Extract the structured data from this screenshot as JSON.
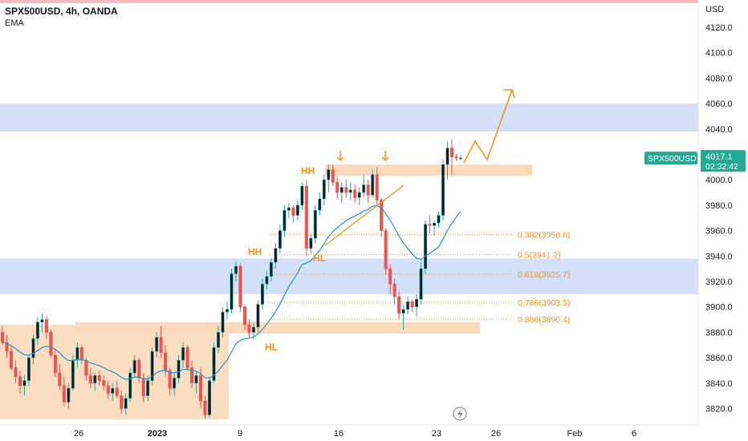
{
  "header": {
    "symbol_line": "SPX500USD, 4h, OANDA",
    "indicator": "EMA"
  },
  "price_axis": {
    "currency": "USD",
    "ticks": [
      "4120.0",
      "4100.0",
      "4080.0",
      "4060.0",
      "4040.0",
      "4020.0",
      "4000.0",
      "3980.0",
      "3960.0",
      "3940.0",
      "3920.0",
      "3900.0",
      "3880.0",
      "3860.0",
      "3840.0",
      "3820.0"
    ]
  },
  "time_axis": {
    "ticks": [
      {
        "label": "26",
        "bold": false
      },
      {
        "label": "2023",
        "bold": true
      },
      {
        "label": "9",
        "bold": false
      },
      {
        "label": "16",
        "bold": false
      },
      {
        "label": "23",
        "bold": false
      },
      {
        "label": "26",
        "bold": false
      },
      {
        "label": "Feb",
        "bold": false
      },
      {
        "label": "6",
        "bold": false
      }
    ]
  },
  "price_badge": {
    "symbol": "SPX500USD",
    "price": "4017.1",
    "countdown": "02:32:42"
  },
  "fib_levels": [
    {
      "label": "0.382(3956.8)",
      "value": 3956.8
    },
    {
      "label": "0.5(3941.2)",
      "value": 3941.2
    },
    {
      "label": "0.618(3925.7)",
      "value": 3925.7
    },
    {
      "label": "0.786(3903.5)",
      "value": 3903.5
    },
    {
      "label": "0.886(3890.4)",
      "value": 3890.4
    }
  ],
  "annotations": [
    "HH",
    "HH",
    "HL",
    "HL"
  ],
  "colors": {
    "up": "#26a69a",
    "down": "#ef5350",
    "body_dark": "#131722",
    "ema": "#2196c9",
    "orange": "#f7931a",
    "blue_zone": "#d4e0f8",
    "orange_zone": "#fbd9bb",
    "badge": "#22ab94"
  },
  "chart_data": {
    "type": "candlestick",
    "ylim": [
      3810,
      4135
    ],
    "unit": "USD",
    "zones": [
      {
        "kind": "resistance",
        "from": 4038,
        "to": 4060
      },
      {
        "kind": "support",
        "from": 3910,
        "to": 3938
      },
      {
        "kind": "supply",
        "from": 4003,
        "to": 4012
      },
      {
        "kind": "demand",
        "from": 3879,
        "to": 3888
      }
    ],
    "candles": [
      [
        3880,
        3885,
        3870,
        3872
      ],
      [
        3872,
        3878,
        3860,
        3865
      ],
      [
        3865,
        3870,
        3850,
        3852
      ],
      [
        3852,
        3858,
        3840,
        3845
      ],
      [
        3845,
        3850,
        3832,
        3838
      ],
      [
        3838,
        3846,
        3830,
        3842
      ],
      [
        3842,
        3862,
        3838,
        3860
      ],
      [
        3860,
        3878,
        3855,
        3875
      ],
      [
        3875,
        3892,
        3870,
        3888
      ],
      [
        3888,
        3895,
        3880,
        3890
      ],
      [
        3890,
        3893,
        3875,
        3880
      ],
      [
        3880,
        3882,
        3860,
        3862
      ],
      [
        3862,
        3866,
        3845,
        3848
      ],
      [
        3848,
        3855,
        3835,
        3838
      ],
      [
        3838,
        3845,
        3822,
        3825
      ],
      [
        3825,
        3840,
        3820,
        3836
      ],
      [
        3836,
        3862,
        3834,
        3858
      ],
      [
        3858,
        3872,
        3852,
        3868
      ],
      [
        3868,
        3870,
        3855,
        3858
      ],
      [
        3858,
        3860,
        3842,
        3846
      ],
      [
        3846,
        3852,
        3836,
        3840
      ],
      [
        3840,
        3848,
        3834,
        3846
      ],
      [
        3846,
        3850,
        3838,
        3842
      ],
      [
        3842,
        3846,
        3834,
        3838
      ],
      [
        3838,
        3842,
        3828,
        3832
      ],
      [
        3832,
        3840,
        3826,
        3836
      ],
      [
        3836,
        3842,
        3828,
        3830
      ],
      [
        3830,
        3834,
        3816,
        3820
      ],
      [
        3820,
        3832,
        3815,
        3828
      ],
      [
        3828,
        3852,
        3825,
        3848
      ],
      [
        3848,
        3862,
        3844,
        3858
      ],
      [
        3858,
        3860,
        3840,
        3844
      ],
      [
        3844,
        3848,
        3825,
        3830
      ],
      [
        3830,
        3846,
        3826,
        3842
      ],
      [
        3842,
        3868,
        3838,
        3865
      ],
      [
        3865,
        3880,
        3860,
        3876
      ],
      [
        3876,
        3885,
        3860,
        3864
      ],
      [
        3864,
        3870,
        3845,
        3850
      ],
      [
        3850,
        3852,
        3830,
        3836
      ],
      [
        3836,
        3848,
        3830,
        3844
      ],
      [
        3844,
        3862,
        3840,
        3858
      ],
      [
        3858,
        3872,
        3852,
        3868
      ],
      [
        3868,
        3870,
        3850,
        3852
      ],
      [
        3852,
        3858,
        3836,
        3840
      ],
      [
        3840,
        3850,
        3832,
        3846
      ],
      [
        3846,
        3852,
        3820,
        3826
      ],
      [
        3826,
        3830,
        3812,
        3815
      ],
      [
        3815,
        3845,
        3813,
        3842
      ],
      [
        3842,
        3872,
        3840,
        3868
      ],
      [
        3868,
        3885,
        3864,
        3880
      ],
      [
        3880,
        3900,
        3876,
        3896
      ],
      [
        3896,
        3904,
        3890,
        3898
      ],
      [
        3898,
        3930,
        3895,
        3926
      ],
      [
        3926,
        3936,
        3920,
        3932
      ],
      [
        3932,
        3934,
        3896,
        3900
      ],
      [
        3900,
        3902,
        3882,
        3886
      ],
      [
        3886,
        3890,
        3876,
        3880
      ],
      [
        3880,
        3888,
        3874,
        3884
      ],
      [
        3884,
        3905,
        3880,
        3902
      ],
      [
        3902,
        3922,
        3898,
        3918
      ],
      [
        3918,
        3928,
        3914,
        3924
      ],
      [
        3924,
        3938,
        3920,
        3935
      ],
      [
        3935,
        3950,
        3930,
        3946
      ],
      [
        3946,
        3965,
        3942,
        3960
      ],
      [
        3960,
        3980,
        3955,
        3976
      ],
      [
        3976,
        3982,
        3970,
        3978
      ],
      [
        3978,
        3980,
        3966,
        3972
      ],
      [
        3972,
        3984,
        3968,
        3980
      ],
      [
        3980,
        3998,
        3976,
        3995
      ],
      [
        3995,
        4000,
        3940,
        3946
      ],
      [
        3946,
        3958,
        3942,
        3954
      ],
      [
        3954,
        3980,
        3950,
        3976
      ],
      [
        3976,
        3990,
        3972,
        3985
      ],
      [
        3985,
        4004,
        3980,
        4000
      ],
      [
        4000,
        4012,
        3990,
        4008
      ],
      [
        4008,
        4012,
        3995,
        3998
      ],
      [
        3998,
        4002,
        3985,
        3990
      ],
      [
        3990,
        3998,
        3982,
        3994
      ],
      [
        3994,
        4000,
        3986,
        3990
      ],
      [
        3990,
        3998,
        3984,
        3992
      ],
      [
        3992,
        3996,
        3982,
        3986
      ],
      [
        3986,
        3994,
        3980,
        3990
      ],
      [
        3990,
        4004,
        3986,
        3996
      ],
      [
        3996,
        4000,
        3982,
        3988
      ],
      [
        3988,
        4008,
        3986,
        4004
      ],
      [
        4004,
        4010,
        3980,
        3984
      ],
      [
        3984,
        3986,
        3955,
        3960
      ],
      [
        3960,
        3962,
        3925,
        3930
      ],
      [
        3930,
        3934,
        3910,
        3918
      ],
      [
        3918,
        3922,
        3902,
        3908
      ],
      [
        3908,
        3912,
        3890,
        3895
      ],
      [
        3895,
        3902,
        3882,
        3898
      ],
      [
        3898,
        3908,
        3894,
        3904
      ],
      [
        3904,
        3906,
        3896,
        3900
      ],
      [
        3900,
        3910,
        3892,
        3906
      ],
      [
        3906,
        3935,
        3902,
        3930
      ],
      [
        3930,
        3968,
        3926,
        3965
      ],
      [
        3965,
        3972,
        3958,
        3964
      ],
      [
        3964,
        3968,
        3956,
        3966
      ],
      [
        3966,
        3975,
        3962,
        3972
      ],
      [
        3972,
        4016,
        3968,
        4012
      ],
      [
        4012,
        4030,
        4000,
        4025
      ],
      [
        4025,
        4032,
        4003,
        4018
      ],
      [
        4018,
        4020,
        4015,
        4017.1
      ],
      [
        4017.1,
        4019,
        4015,
        4017.1
      ]
    ]
  }
}
